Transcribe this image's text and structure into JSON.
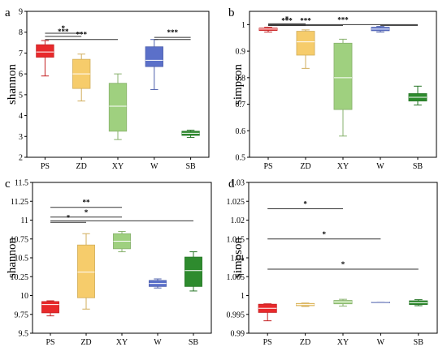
{
  "chart_data": [
    {
      "type": "box",
      "panel_label": "a",
      "ylabel": "shannon",
      "ylim": [
        2,
        9
      ],
      "yticks": [
        "2",
        "3",
        "4",
        "5",
        "6",
        "7",
        "8",
        "9"
      ],
      "categories": [
        "PS",
        "ZD",
        "XY",
        "W",
        "SB"
      ],
      "colors": [
        "#e8292b",
        "#f6cc6b",
        "#9fd07f",
        "#5b70c9",
        "#2e8b2e"
      ],
      "boxes": [
        {
          "min": 5.9,
          "q1": 6.8,
          "median": 7.05,
          "q3": 7.4,
          "max": 7.6
        },
        {
          "min": 4.7,
          "q1": 5.3,
          "median": 6.0,
          "q3": 6.7,
          "max": 6.95
        },
        {
          "min": 2.85,
          "q1": 3.25,
          "median": 4.45,
          "q3": 5.55,
          "max": 6.0
        },
        {
          "min": 5.25,
          "q1": 6.35,
          "median": 6.65,
          "q3": 7.3,
          "max": 7.65
        },
        {
          "min": 2.95,
          "q1": 3.05,
          "median": 3.15,
          "q3": 3.25,
          "max": 3.3
        }
      ],
      "significance": [
        {
          "from": 0,
          "to": 1,
          "y": 7.95,
          "label": "*"
        },
        {
          "from": 0,
          "to": 1,
          "y": 7.8,
          "label": "***"
        },
        {
          "from": 0,
          "to": 2,
          "y": 7.65,
          "label": "***"
        },
        {
          "from": 3,
          "to": 4,
          "y": 7.75,
          "label": "***"
        },
        {
          "from": 3,
          "to": 4,
          "y": 7.65,
          "label": ""
        }
      ]
    },
    {
      "type": "box",
      "panel_label": "b",
      "ylabel": "simpson",
      "ylim": [
        0.5,
        1.05
      ],
      "yticks": [
        "0.5",
        "0.6",
        "0.7",
        "0.8",
        "0.9",
        "1"
      ],
      "categories": [
        "PS",
        "ZD",
        "XY",
        "W",
        "SB"
      ],
      "colors": [
        "#e8292b",
        "#f6cc6b",
        "#9fd07f",
        "#5b70c9",
        "#2e8b2e"
      ],
      "boxes": [
        {
          "min": 0.972,
          "q1": 0.978,
          "median": 0.983,
          "q3": 0.987,
          "max": 0.99
        },
        {
          "min": 0.835,
          "q1": 0.885,
          "median": 0.935,
          "q3": 0.975,
          "max": 0.98
        },
        {
          "min": 0.58,
          "q1": 0.68,
          "median": 0.8,
          "q3": 0.93,
          "max": 0.945
        },
        {
          "min": 0.972,
          "q1": 0.977,
          "median": 0.983,
          "q3": 0.99,
          "max": 0.993
        },
        {
          "min": 0.697,
          "q1": 0.712,
          "median": 0.726,
          "q3": 0.74,
          "max": 0.768
        }
      ],
      "significance": [
        {
          "from": 0,
          "to": 1,
          "y": 1.003,
          "label": "*"
        },
        {
          "from": 0,
          "to": 1,
          "y": 0.997,
          "label": "***"
        },
        {
          "from": 0,
          "to": 2,
          "y": 0.997,
          "label": "***"
        },
        {
          "from": 0,
          "to": 4,
          "y": 1.0,
          "label": "***"
        },
        {
          "from": 3,
          "to": 4,
          "y": 0.997,
          "label": ""
        }
      ]
    },
    {
      "type": "box",
      "panel_label": "c",
      "ylabel": "shannon",
      "ylim": [
        9.5,
        11.5
      ],
      "yticks": [
        "9.5",
        "9.75",
        "10",
        "10.25",
        "10.5",
        "10.75",
        "11",
        "11.25",
        "11.5"
      ],
      "categories": [
        "PS",
        "ZD",
        "XY",
        "W",
        "SB"
      ],
      "colors": [
        "#e8292b",
        "#f6cc6b",
        "#9fd07f",
        "#5b70c9",
        "#2e8b2e"
      ],
      "boxes": [
        {
          "min": 9.73,
          "q1": 9.77,
          "median": 9.88,
          "q3": 9.92,
          "max": 9.93
        },
        {
          "min": 9.82,
          "q1": 9.97,
          "median": 10.31,
          "q3": 10.67,
          "max": 10.82
        },
        {
          "min": 10.58,
          "q1": 10.62,
          "median": 10.72,
          "q3": 10.82,
          "max": 10.85
        },
        {
          "min": 10.1,
          "q1": 10.12,
          "median": 10.16,
          "q3": 10.2,
          "max": 10.22
        },
        {
          "min": 10.06,
          "q1": 10.12,
          "median": 10.33,
          "q3": 10.51,
          "max": 10.58
        }
      ],
      "significance": [
        {
          "from": 0,
          "to": 2,
          "y": 11.17,
          "label": "**"
        },
        {
          "from": 0,
          "to": 1,
          "y": 10.97,
          "label": "*"
        },
        {
          "from": 0,
          "to": 2,
          "y": 11.04,
          "label": "*"
        },
        {
          "from": 0,
          "to": 4,
          "y": 10.99,
          "label": ""
        }
      ]
    },
    {
      "type": "box",
      "panel_label": "d",
      "ylabel": "simpson",
      "ylim": [
        0.99,
        1.03
      ],
      "yticks": [
        "0.99",
        "0.995",
        "1",
        "1.005",
        "1.01",
        "1.015",
        "1.02",
        "1.025",
        "1.03"
      ],
      "categories": [
        "PS",
        "ZD",
        "XY",
        "W",
        "SB"
      ],
      "colors": [
        "#e8292b",
        "#f6cc6b",
        "#9fd07f",
        "#5b70c9",
        "#2e8b2e"
      ],
      "boxes": [
        {
          "min": 0.9933,
          "q1": 0.9955,
          "median": 0.9966,
          "q3": 0.9977,
          "max": 0.9978
        },
        {
          "min": 0.9971,
          "q1": 0.9973,
          "median": 0.9976,
          "q3": 0.9979,
          "max": 0.998
        },
        {
          "min": 0.9972,
          "q1": 0.9978,
          "median": 0.9983,
          "q3": 0.9987,
          "max": 0.999
        },
        {
          "min": 0.9982,
          "q1": 0.9982,
          "median": 0.9982,
          "q3": 0.9983,
          "max": 0.9983
        },
        {
          "min": 0.9973,
          "q1": 0.9976,
          "median": 0.9981,
          "q3": 0.9986,
          "max": 0.9989
        }
      ],
      "significance": [
        {
          "from": 0,
          "to": 2,
          "y": 1.023,
          "label": "*"
        },
        {
          "from": 0,
          "to": 3,
          "y": 1.015,
          "label": "*"
        },
        {
          "from": 0,
          "to": 4,
          "y": 1.007,
          "label": "*"
        }
      ]
    }
  ]
}
